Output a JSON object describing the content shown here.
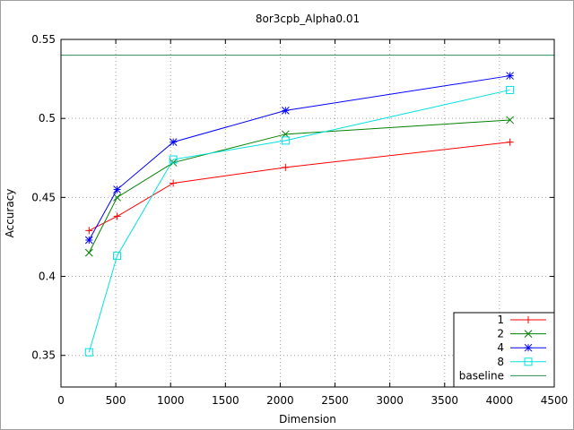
{
  "chart_data": {
    "type": "line",
    "title": "8or3cpb_Alpha0.01",
    "xlabel": "Dimension",
    "ylabel": "Accuracy",
    "xlim": [
      0,
      4500
    ],
    "ylim": [
      0.33,
      0.55
    ],
    "xticks": [
      0,
      500,
      1000,
      1500,
      2000,
      2500,
      3000,
      3500,
      4000,
      4500
    ],
    "yticks": [
      0.35,
      0.4,
      0.45,
      0.5,
      0.55
    ],
    "xtick_labels": [
      "0",
      "500",
      "1000",
      "1500",
      "2000",
      "2500",
      "3000",
      "3500",
      "4000",
      "4500"
    ],
    "ytick_labels": [
      "0.35",
      "0.4",
      "0.45",
      "0.5",
      "0.55"
    ],
    "grid": true,
    "legend_position": "bottom-right",
    "x": [
      256,
      512,
      1024,
      2048,
      4096
    ],
    "series": [
      {
        "name": "1",
        "color": "#ff0000",
        "marker": "plus",
        "values": [
          0.429,
          0.438,
          0.459,
          0.469,
          0.485
        ]
      },
      {
        "name": "2",
        "color": "#008000",
        "marker": "cross",
        "values": [
          0.415,
          0.45,
          0.472,
          0.49,
          0.499
        ]
      },
      {
        "name": "4",
        "color": "#0000ff",
        "marker": "star",
        "values": [
          0.423,
          0.455,
          0.485,
          0.505,
          0.527
        ]
      },
      {
        "name": "8",
        "color": "#00e0e0",
        "marker": "square",
        "values": [
          0.352,
          0.413,
          0.474,
          0.486,
          0.518
        ]
      }
    ],
    "baseline": {
      "name": "baseline",
      "color": "#2e8b57",
      "value": 0.54
    }
  }
}
